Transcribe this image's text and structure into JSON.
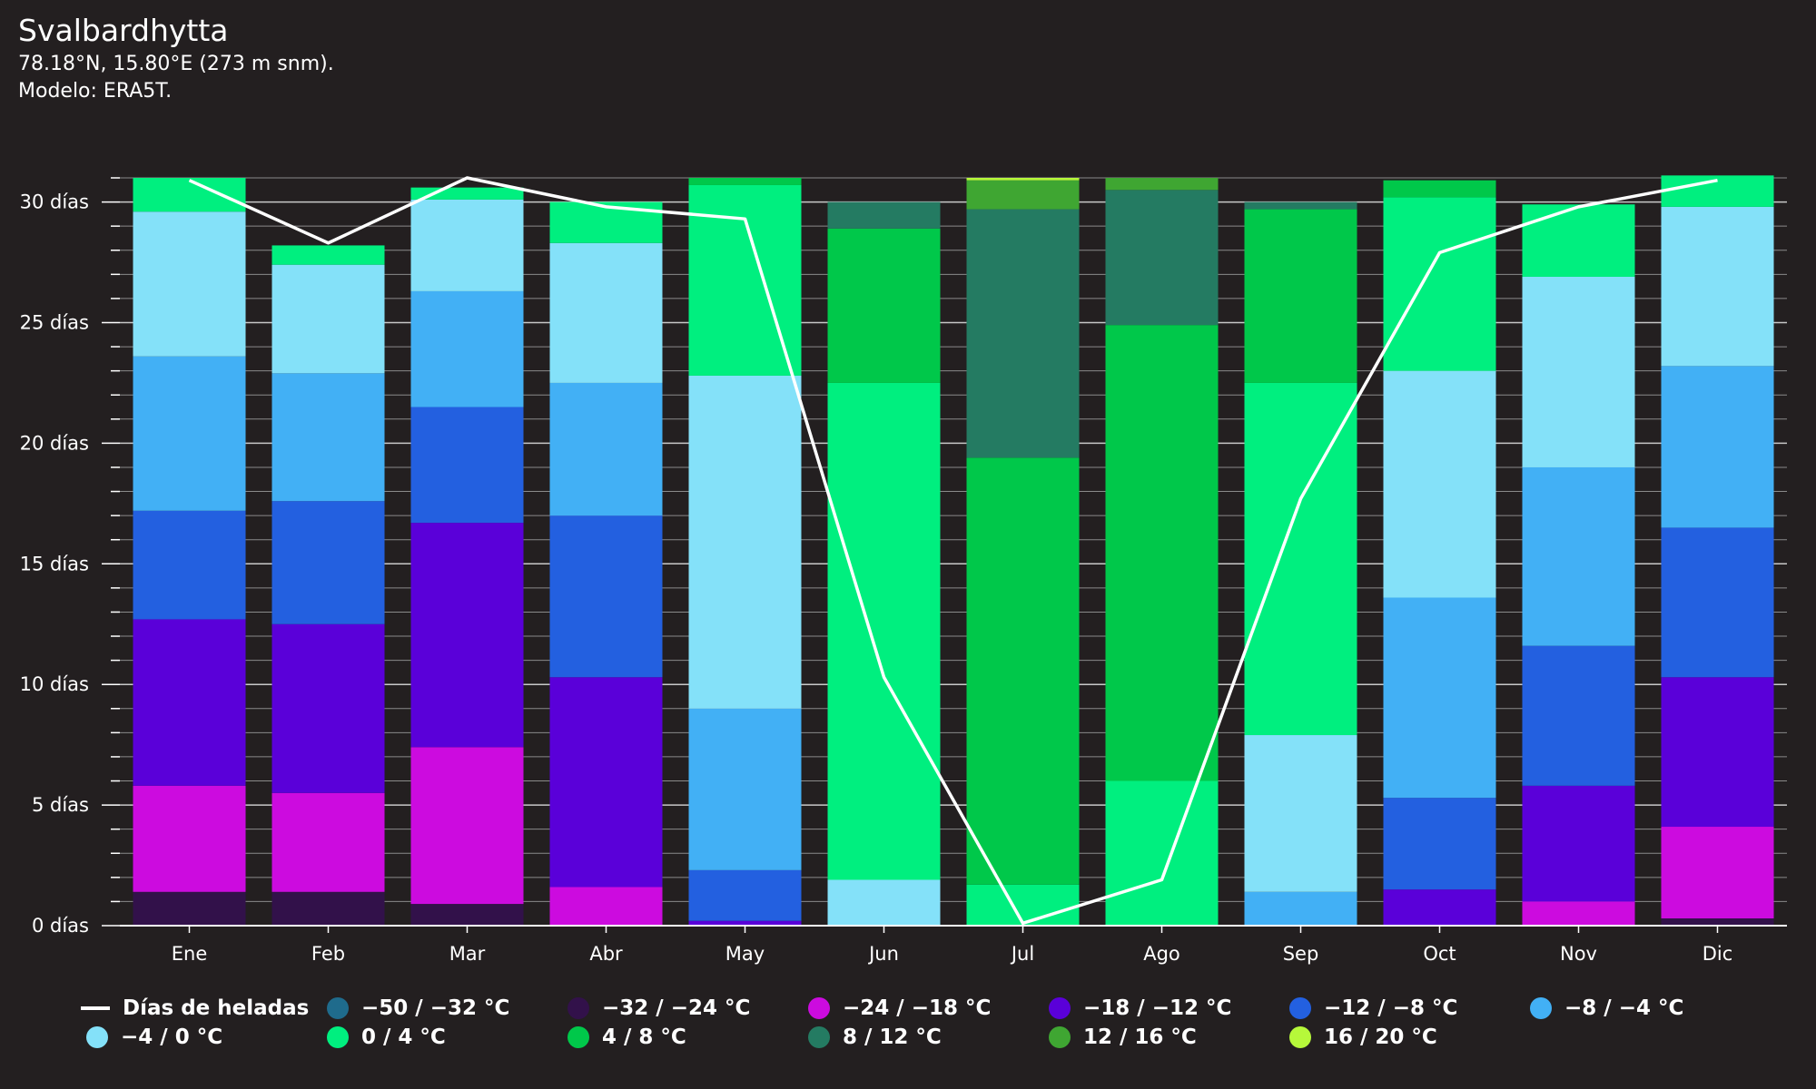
{
  "header": {
    "title": "Svalbardhytta",
    "location": "78.18°N, 15.80°E (273 m snm).",
    "model": "Modelo: ERA5T."
  },
  "chart_data": {
    "type": "bar",
    "stacked": true,
    "categories": [
      "Ene",
      "Feb",
      "Mar",
      "Abr",
      "May",
      "Jun",
      "Jul",
      "Ago",
      "Sep",
      "Oct",
      "Nov",
      "Dic"
    ],
    "ylim": [
      0,
      31
    ],
    "yticks": [
      0,
      5,
      10,
      15,
      20,
      25,
      30
    ],
    "ytick_labels": [
      "0 días",
      "5 días",
      "10 días",
      "15 días",
      "20 días",
      "25 días",
      "30 días"
    ],
    "grid": true,
    "legend_position": "bottom",
    "series": [
      {
        "name": "−50 / −32 °C",
        "color": "#1f6b8c",
        "values": [
          0,
          0,
          0,
          0,
          0,
          0,
          0,
          0,
          0,
          0,
          0,
          0
        ]
      },
      {
        "name": "−32 / −24 °C",
        "color": "#32114a",
        "values": [
          1.4,
          1.4,
          0.9,
          0,
          0,
          0,
          0,
          0,
          0,
          0,
          0,
          0.3
        ]
      },
      {
        "name": "−24 / −18 °C",
        "color": "#cc0bdf",
        "values": [
          4.4,
          4.1,
          6.5,
          1.6,
          0,
          0,
          0,
          0,
          0,
          0,
          1.0,
          3.8
        ]
      },
      {
        "name": "−18 / −12 °C",
        "color": "#5a00d9",
        "values": [
          6.9,
          7.0,
          9.3,
          8.7,
          0.2,
          0,
          0,
          0,
          0,
          1.5,
          4.8,
          6.2
        ]
      },
      {
        "name": "−12 / −8 °C",
        "color": "#2360e0",
        "values": [
          4.5,
          5.1,
          4.8,
          6.7,
          2.1,
          0,
          0,
          0,
          0,
          3.8,
          5.8,
          6.2
        ]
      },
      {
        "name": "−8 / −4 °C",
        "color": "#42b0f5",
        "values": [
          6.4,
          5.3,
          4.8,
          5.5,
          6.7,
          0,
          0,
          0,
          1.4,
          8.3,
          7.4,
          6.7
        ]
      },
      {
        "name": "−4 / 0 °C",
        "color": "#84e1f9",
        "values": [
          6.0,
          4.5,
          3.8,
          5.8,
          13.8,
          1.9,
          0,
          0,
          6.5,
          9.4,
          7.9,
          6.6
        ]
      },
      {
        "name": "0 / 4 °C",
        "color": "#00ef7f",
        "values": [
          1.4,
          0.8,
          0.5,
          1.7,
          7.9,
          20.6,
          1.7,
          6.0,
          14.6,
          7.2,
          3.0,
          1.3
        ]
      },
      {
        "name": "4 / 8 °C",
        "color": "#00c84a",
        "values": [
          0,
          0,
          0,
          0,
          0.3,
          6.4,
          17.7,
          18.9,
          7.2,
          0.7,
          0,
          0
        ]
      },
      {
        "name": "8 / 12 °C",
        "color": "#247b62",
        "values": [
          0,
          0,
          0,
          0,
          0,
          1.1,
          10.3,
          5.6,
          0.3,
          0,
          0,
          0
        ]
      },
      {
        "name": "12 / 16 °C",
        "color": "#3fa632",
        "values": [
          0,
          0,
          0,
          0,
          0,
          0,
          1.2,
          0.5,
          0,
          0,
          0,
          0
        ]
      },
      {
        "name": "16 / 20 °C",
        "color": "#b6f83a",
        "values": [
          0,
          0,
          0,
          0,
          0,
          0,
          0.1,
          0,
          0,
          0,
          0,
          0
        ]
      }
    ],
    "line": {
      "name": "Días de heladas",
      "color": "#ffffff",
      "values": [
        30.9,
        28.3,
        31.0,
        29.8,
        29.3,
        10.3,
        0.1,
        1.9,
        17.7,
        27.9,
        29.8,
        30.9
      ]
    }
  }
}
